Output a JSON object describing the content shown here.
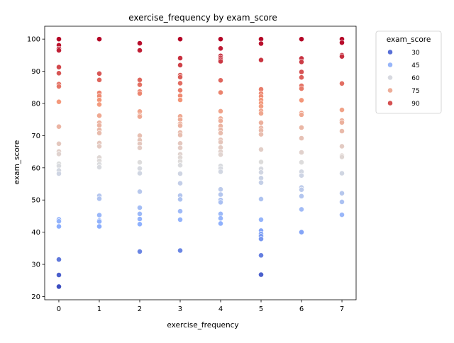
{
  "chart_data": {
    "type": "scatter",
    "title": "exercise_frequency by exam_score",
    "xlabel": "exercise_frequency",
    "ylabel": "exam_score",
    "xlim": [
      -0.35,
      7.35
    ],
    "ylim": [
      19.0,
      104.0
    ],
    "x_ticks": [
      0,
      1,
      2,
      3,
      4,
      5,
      6,
      7
    ],
    "y_ticks": [
      20,
      30,
      40,
      50,
      60,
      70,
      80,
      90,
      100
    ],
    "grid": false,
    "legend": {
      "title": "exam_score",
      "placement": "outside-upper-right",
      "entries": [
        {
          "label": "30",
          "value": 30
        },
        {
          "label": "45",
          "value": 45
        },
        {
          "label": "60",
          "value": 60
        },
        {
          "label": "75",
          "value": 75
        },
        {
          "label": "90",
          "value": 90
        }
      ]
    },
    "colormap": "coolwarm",
    "color_range": [
      23,
      100
    ],
    "points": [
      {
        "x": 0,
        "y": 100
      },
      {
        "x": 0,
        "y": 98.1
      },
      {
        "x": 0,
        "y": 97
      },
      {
        "x": 0,
        "y": 96.5
      },
      {
        "x": 0,
        "y": 91.3
      },
      {
        "x": 0,
        "y": 89.4
      },
      {
        "x": 0,
        "y": 86
      },
      {
        "x": 0,
        "y": 85.3
      },
      {
        "x": 0,
        "y": 80.5
      },
      {
        "x": 0,
        "y": 72.8
      },
      {
        "x": 0,
        "y": 67.5
      },
      {
        "x": 0,
        "y": 65.1
      },
      {
        "x": 0,
        "y": 64.3
      },
      {
        "x": 0,
        "y": 61.3
      },
      {
        "x": 0,
        "y": 60.6
      },
      {
        "x": 0,
        "y": 59.2
      },
      {
        "x": 0,
        "y": 58.2
      },
      {
        "x": 0,
        "y": 44
      },
      {
        "x": 0,
        "y": 43.4
      },
      {
        "x": 0,
        "y": 41.8
      },
      {
        "x": 0,
        "y": 31.5
      },
      {
        "x": 0,
        "y": 26.7
      },
      {
        "x": 0,
        "y": 23.1
      },
      {
        "x": 1,
        "y": 100
      },
      {
        "x": 1,
        "y": 89.3
      },
      {
        "x": 1,
        "y": 87.3
      },
      {
        "x": 1,
        "y": 83.3
      },
      {
        "x": 1,
        "y": 82.3
      },
      {
        "x": 1,
        "y": 81.1
      },
      {
        "x": 1,
        "y": 79.7
      },
      {
        "x": 1,
        "y": 76.2
      },
      {
        "x": 1,
        "y": 74
      },
      {
        "x": 1,
        "y": 73.2
      },
      {
        "x": 1,
        "y": 71.8
      },
      {
        "x": 1,
        "y": 70.8
      },
      {
        "x": 1,
        "y": 67.7
      },
      {
        "x": 1,
        "y": 66.7
      },
      {
        "x": 1,
        "y": 63.2
      },
      {
        "x": 1,
        "y": 62.2
      },
      {
        "x": 1,
        "y": 61.1
      },
      {
        "x": 1,
        "y": 60.2
      },
      {
        "x": 1,
        "y": 51.3
      },
      {
        "x": 1,
        "y": 50.4
      },
      {
        "x": 1,
        "y": 45.3
      },
      {
        "x": 1,
        "y": 43.6
      },
      {
        "x": 1,
        "y": 43.3
      },
      {
        "x": 1,
        "y": 41.8
      },
      {
        "x": 2,
        "y": 98.7
      },
      {
        "x": 2,
        "y": 96.5
      },
      {
        "x": 2,
        "y": 87.3
      },
      {
        "x": 2,
        "y": 85.8
      },
      {
        "x": 2,
        "y": 83.7
      },
      {
        "x": 2,
        "y": 83.1
      },
      {
        "x": 2,
        "y": 77.5
      },
      {
        "x": 2,
        "y": 76.3
      },
      {
        "x": 2,
        "y": 75.9
      },
      {
        "x": 2,
        "y": 70
      },
      {
        "x": 2,
        "y": 68.6
      },
      {
        "x": 2,
        "y": 67.5
      },
      {
        "x": 2,
        "y": 66.2
      },
      {
        "x": 2,
        "y": 61.7
      },
      {
        "x": 2,
        "y": 59.8
      },
      {
        "x": 2,
        "y": 58.3
      },
      {
        "x": 2,
        "y": 52.6
      },
      {
        "x": 2,
        "y": 47.6
      },
      {
        "x": 2,
        "y": 45.7
      },
      {
        "x": 2,
        "y": 44.1
      },
      {
        "x": 2,
        "y": 42.5
      },
      {
        "x": 2,
        "y": 34
      },
      {
        "x": 3,
        "y": 100
      },
      {
        "x": 3,
        "y": 94.1
      },
      {
        "x": 3,
        "y": 91.9
      },
      {
        "x": 3,
        "y": 88.8
      },
      {
        "x": 3,
        "y": 88.2
      },
      {
        "x": 3,
        "y": 86.3
      },
      {
        "x": 3,
        "y": 84.1
      },
      {
        "x": 3,
        "y": 82.4
      },
      {
        "x": 3,
        "y": 81.1
      },
      {
        "x": 3,
        "y": 76
      },
      {
        "x": 3,
        "y": 75
      },
      {
        "x": 3,
        "y": 73.7
      },
      {
        "x": 3,
        "y": 73.1
      },
      {
        "x": 3,
        "y": 71
      },
      {
        "x": 3,
        "y": 70.2
      },
      {
        "x": 3,
        "y": 67.6
      },
      {
        "x": 3,
        "y": 66.2
      },
      {
        "x": 3,
        "y": 64.2
      },
      {
        "x": 3,
        "y": 63.2
      },
      {
        "x": 3,
        "y": 62
      },
      {
        "x": 3,
        "y": 60.8
      },
      {
        "x": 3,
        "y": 58.2
      },
      {
        "x": 3,
        "y": 55.2
      },
      {
        "x": 3,
        "y": 51.4
      },
      {
        "x": 3,
        "y": 50.2
      },
      {
        "x": 3,
        "y": 46.5
      },
      {
        "x": 3,
        "y": 43.9
      },
      {
        "x": 3,
        "y": 34.3
      },
      {
        "x": 4,
        "y": 100
      },
      {
        "x": 4,
        "y": 97.1
      },
      {
        "x": 4,
        "y": 94.8
      },
      {
        "x": 4,
        "y": 94.2
      },
      {
        "x": 4,
        "y": 93.6
      },
      {
        "x": 4,
        "y": 93.1
      },
      {
        "x": 4,
        "y": 87.2
      },
      {
        "x": 4,
        "y": 83.4
      },
      {
        "x": 4,
        "y": 77.6
      },
      {
        "x": 4,
        "y": 75.3
      },
      {
        "x": 4,
        "y": 74.6
      },
      {
        "x": 4,
        "y": 73
      },
      {
        "x": 4,
        "y": 71.8
      },
      {
        "x": 4,
        "y": 70.8
      },
      {
        "x": 4,
        "y": 68.7
      },
      {
        "x": 4,
        "y": 68
      },
      {
        "x": 4,
        "y": 66.3
      },
      {
        "x": 4,
        "y": 65
      },
      {
        "x": 4,
        "y": 64.1
      },
      {
        "x": 4,
        "y": 60.6
      },
      {
        "x": 4,
        "y": 59.8
      },
      {
        "x": 4,
        "y": 58.8
      },
      {
        "x": 4,
        "y": 53.3
      },
      {
        "x": 4,
        "y": 51.7
      },
      {
        "x": 4,
        "y": 50
      },
      {
        "x": 4,
        "y": 49.3
      },
      {
        "x": 4,
        "y": 45.7
      },
      {
        "x": 4,
        "y": 44.3
      },
      {
        "x": 4,
        "y": 42.7
      },
      {
        "x": 5,
        "y": 100
      },
      {
        "x": 5,
        "y": 98.6
      },
      {
        "x": 5,
        "y": 93.5
      },
      {
        "x": 5,
        "y": 84.4
      },
      {
        "x": 5,
        "y": 83.1
      },
      {
        "x": 5,
        "y": 82.2
      },
      {
        "x": 5,
        "y": 81.1
      },
      {
        "x": 5,
        "y": 80.1
      },
      {
        "x": 5,
        "y": 79.1
      },
      {
        "x": 5,
        "y": 77.7
      },
      {
        "x": 5,
        "y": 76.9
      },
      {
        "x": 5,
        "y": 74
      },
      {
        "x": 5,
        "y": 72.4
      },
      {
        "x": 5,
        "y": 71.6
      },
      {
        "x": 5,
        "y": 70.4
      },
      {
        "x": 5,
        "y": 65.7
      },
      {
        "x": 5,
        "y": 61.8
      },
      {
        "x": 5,
        "y": 59.7
      },
      {
        "x": 5,
        "y": 58.6
      },
      {
        "x": 5,
        "y": 56.8
      },
      {
        "x": 5,
        "y": 55.4
      },
      {
        "x": 5,
        "y": 50.3
      },
      {
        "x": 5,
        "y": 43.9
      },
      {
        "x": 5,
        "y": 40.5
      },
      {
        "x": 5,
        "y": 39.5
      },
      {
        "x": 5,
        "y": 38.8
      },
      {
        "x": 5,
        "y": 37.9
      },
      {
        "x": 5,
        "y": 32.8
      },
      {
        "x": 5,
        "y": 26.8
      },
      {
        "x": 6,
        "y": 100
      },
      {
        "x": 6,
        "y": 94
      },
      {
        "x": 6,
        "y": 92.9
      },
      {
        "x": 6,
        "y": 89.8
      },
      {
        "x": 6,
        "y": 88.1
      },
      {
        "x": 6,
        "y": 85.5
      },
      {
        "x": 6,
        "y": 84.6
      },
      {
        "x": 6,
        "y": 81
      },
      {
        "x": 6,
        "y": 77
      },
      {
        "x": 6,
        "y": 76.5
      },
      {
        "x": 6,
        "y": 72.5
      },
      {
        "x": 6,
        "y": 69.2
      },
      {
        "x": 6,
        "y": 64.8
      },
      {
        "x": 6,
        "y": 61.7
      },
      {
        "x": 6,
        "y": 58.8
      },
      {
        "x": 6,
        "y": 57.6
      },
      {
        "x": 6,
        "y": 53.9
      },
      {
        "x": 6,
        "y": 53.2
      },
      {
        "x": 6,
        "y": 51.2
      },
      {
        "x": 6,
        "y": 47.1
      },
      {
        "x": 6,
        "y": 40
      },
      {
        "x": 7,
        "y": 100
      },
      {
        "x": 7,
        "y": 98.9
      },
      {
        "x": 7,
        "y": 95
      },
      {
        "x": 7,
        "y": 94.6
      },
      {
        "x": 7,
        "y": 86.2
      },
      {
        "x": 7,
        "y": 78
      },
      {
        "x": 7,
        "y": 74.7
      },
      {
        "x": 7,
        "y": 74.1
      },
      {
        "x": 7,
        "y": 71.4
      },
      {
        "x": 7,
        "y": 66.7
      },
      {
        "x": 7,
        "y": 63.8
      },
      {
        "x": 7,
        "y": 63.4
      },
      {
        "x": 7,
        "y": 58.3
      },
      {
        "x": 7,
        "y": 52.1
      },
      {
        "x": 7,
        "y": 49.4
      },
      {
        "x": 7,
        "y": 45.4
      }
    ]
  }
}
